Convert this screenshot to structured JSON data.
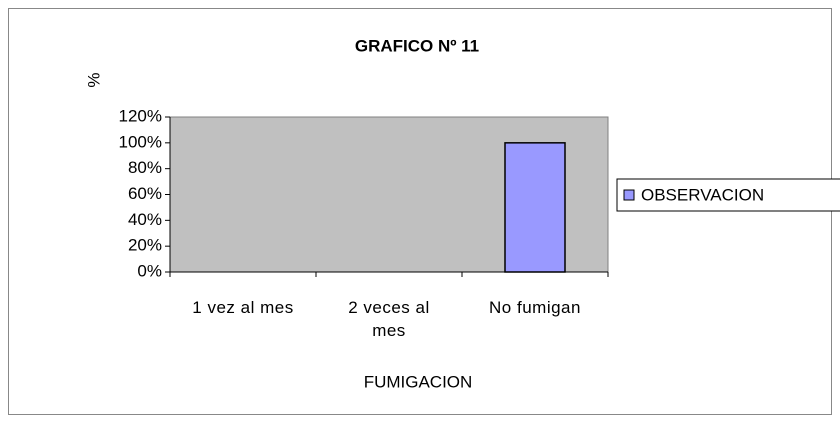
{
  "chart_data": {
    "type": "bar",
    "title": "GRAFICO Nº 11",
    "y_label": "%",
    "x_label": "FUMIGACION",
    "categories": [
      "1 vez al mes",
      "2 veces al mes",
      "No fumigan"
    ],
    "series": [
      {
        "name": "OBSERVACION",
        "color": "#9999ff",
        "values": [
          0,
          0,
          100
        ]
      }
    ],
    "ylim": [
      0,
      120
    ],
    "yticks": [
      {
        "value": 0,
        "label": "0%"
      },
      {
        "value": 20,
        "label": "20%"
      },
      {
        "value": 40,
        "label": "40%"
      },
      {
        "value": 60,
        "label": "60%"
      },
      {
        "value": 80,
        "label": "80%"
      },
      {
        "value": 100,
        "label": "100%"
      },
      {
        "value": 120,
        "label": "120%"
      }
    ],
    "plot_background": "#c0c0c0",
    "legend": "right",
    "grid": false
  }
}
